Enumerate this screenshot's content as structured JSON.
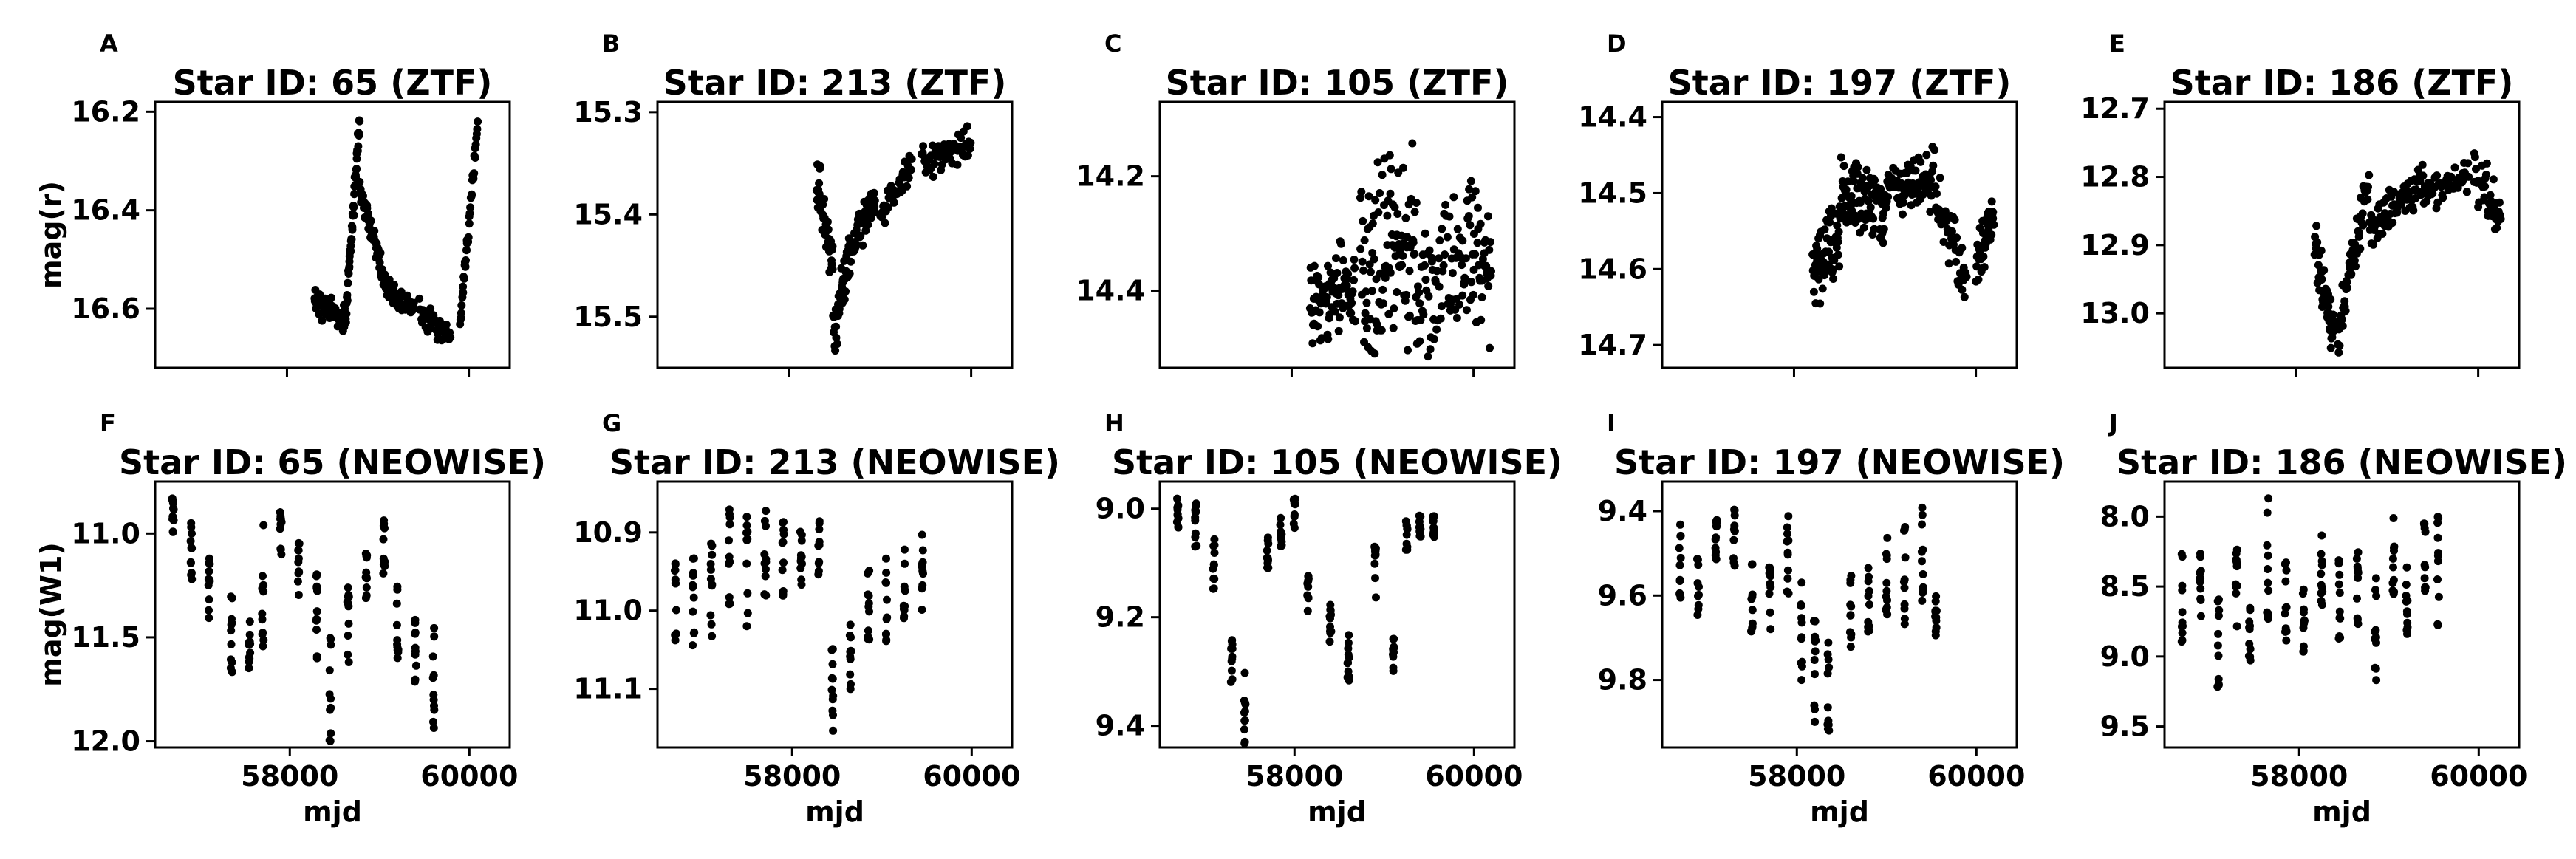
{
  "figure": {
    "marker_color": "#000000",
    "background": "#ffffff"
  },
  "chart_data": [
    {
      "type": "scatter",
      "panel_label": "A",
      "title": "Star ID: 65 (ZTF)",
      "xlabel": "",
      "ylabel": "mag(r)",
      "y_inverted": true,
      "grid": false,
      "xlim": [
        56550,
        60450
      ],
      "ylim": [
        16.72,
        16.18
      ],
      "xticks": [
        58000,
        60000
      ],
      "xticks_labeled": false,
      "yticks": [
        16.2,
        16.4,
        16.6
      ],
      "segments": [
        {
          "x0": 58300,
          "x1": 58640,
          "y0": 16.58,
          "y1": 16.62,
          "n": 60,
          "spread": 0.035
        },
        {
          "x0": 58640,
          "x1": 58800,
          "y0": 16.63,
          "y1": 16.22,
          "n": 55,
          "spread": 0.03
        },
        {
          "x0": 58800,
          "x1": 59100,
          "y0": 16.35,
          "y1": 16.56,
          "n": 60,
          "spread": 0.03
        },
        {
          "x0": 59100,
          "x1": 59400,
          "y0": 16.56,
          "y1": 16.6,
          "n": 40,
          "spread": 0.03
        },
        {
          "x0": 59450,
          "x1": 59800,
          "y0": 16.6,
          "y1": 16.66,
          "n": 45,
          "spread": 0.035
        },
        {
          "x0": 59900,
          "x1": 60100,
          "y0": 16.64,
          "y1": 16.22,
          "n": 40,
          "spread": 0.02
        }
      ]
    },
    {
      "type": "scatter",
      "panel_label": "B",
      "title": "Star ID: 213 (ZTF)",
      "xlabel": "",
      "ylabel": "",
      "y_inverted": true,
      "grid": false,
      "xlim": [
        56550,
        60450
      ],
      "ylim": [
        15.55,
        15.29
      ],
      "xticks": [
        58000,
        60000
      ],
      "xticks_labeled": false,
      "yticks": [
        15.3,
        15.4,
        15.5
      ],
      "segments": [
        {
          "x0": 58300,
          "x1": 58480,
          "y0": 15.36,
          "y1": 15.46,
          "n": 45,
          "spread": 0.03
        },
        {
          "x0": 58480,
          "x1": 58650,
          "y0": 15.52,
          "y1": 15.44,
          "n": 45,
          "spread": 0.03
        },
        {
          "x0": 58650,
          "x1": 58950,
          "y0": 15.44,
          "y1": 15.38,
          "n": 55,
          "spread": 0.025
        },
        {
          "x0": 59000,
          "x1": 59350,
          "y0": 15.4,
          "y1": 15.35,
          "n": 45,
          "spread": 0.02
        },
        {
          "x0": 59450,
          "x1": 60000,
          "y0": 15.35,
          "y1": 15.33,
          "n": 55,
          "spread": 0.02
        }
      ]
    },
    {
      "type": "scatter",
      "panel_label": "C",
      "title": "Star ID: 105 (ZTF)",
      "xlabel": "",
      "ylabel": "",
      "y_inverted": true,
      "grid": false,
      "xlim": [
        56550,
        60450
      ],
      "ylim": [
        14.535,
        14.07
      ],
      "xticks": [
        58000,
        60000
      ],
      "xticks_labeled": false,
      "yticks": [
        14.2,
        14.4
      ],
      "segments": [
        {
          "x0": 58200,
          "x1": 58700,
          "y0": 14.42,
          "y1": 14.4,
          "n": 90,
          "spread": 0.1
        },
        {
          "x0": 58750,
          "x1": 59400,
          "y0": 14.33,
          "y1": 14.33,
          "n": 110,
          "spread": 0.2
        },
        {
          "x0": 59400,
          "x1": 59950,
          "y0": 14.42,
          "y1": 14.33,
          "n": 70,
          "spread": 0.15
        },
        {
          "x0": 59950,
          "x1": 60200,
          "y0": 14.32,
          "y1": 14.38,
          "n": 40,
          "spread": 0.16
        }
      ]
    },
    {
      "type": "scatter",
      "panel_label": "D",
      "title": "Star ID: 197 (ZTF)",
      "xlabel": "",
      "ylabel": "",
      "y_inverted": true,
      "grid": false,
      "xlim": [
        56550,
        60450
      ],
      "ylim": [
        14.73,
        14.38
      ],
      "xticks": [
        58000,
        60000
      ],
      "xticks_labeled": false,
      "yticks": [
        14.4,
        14.5,
        14.6,
        14.7
      ],
      "segments": [
        {
          "x0": 58200,
          "x1": 58500,
          "y0": 14.6,
          "y1": 14.56,
          "n": 60,
          "spread": 0.06
        },
        {
          "x0": 58500,
          "x1": 59000,
          "y0": 14.5,
          "y1": 14.52,
          "n": 90,
          "spread": 0.055
        },
        {
          "x0": 59000,
          "x1": 59550,
          "y0": 14.5,
          "y1": 14.48,
          "n": 80,
          "spread": 0.05
        },
        {
          "x0": 59550,
          "x1": 59900,
          "y0": 14.5,
          "y1": 14.62,
          "n": 40,
          "spread": 0.05
        },
        {
          "x0": 60000,
          "x1": 60200,
          "y0": 14.6,
          "y1": 14.52,
          "n": 35,
          "spread": 0.04
        }
      ]
    },
    {
      "type": "scatter",
      "panel_label": "E",
      "title": "Star ID: 186 (ZTF)",
      "xlabel": "",
      "ylabel": "",
      "y_inverted": true,
      "grid": false,
      "xlim": [
        56550,
        60450
      ],
      "ylim": [
        13.08,
        12.69
      ],
      "xticks": [
        58000,
        60000
      ],
      "xticks_labeled": false,
      "yticks": [
        12.7,
        12.8,
        12.9,
        13.0
      ],
      "segments": [
        {
          "x0": 58200,
          "x1": 58420,
          "y0": 12.9,
          "y1": 13.03,
          "n": 50,
          "spread": 0.05
        },
        {
          "x0": 58450,
          "x1": 58800,
          "y0": 13.03,
          "y1": 12.8,
          "n": 60,
          "spread": 0.05
        },
        {
          "x0": 58800,
          "x1": 59400,
          "y0": 12.88,
          "y1": 12.8,
          "n": 70,
          "spread": 0.04
        },
        {
          "x0": 59400,
          "x1": 59900,
          "y0": 12.82,
          "y1": 12.8,
          "n": 50,
          "spread": 0.035
        },
        {
          "x0": 59950,
          "x1": 60250,
          "y0": 12.8,
          "y1": 12.86,
          "n": 40,
          "spread": 0.05
        }
      ]
    },
    {
      "type": "scatter",
      "panel_label": "F",
      "title": "Star ID: 65 (NEOWISE)",
      "xlabel": "mjd",
      "ylabel": "mag(W1)",
      "y_inverted": true,
      "grid": false,
      "xlim": [
        56500,
        60450
      ],
      "ylim": [
        12.03,
        10.75
      ],
      "xticks": [
        58000,
        60000
      ],
      "xticks_labeled": true,
      "yticks": [
        11.0,
        11.5,
        12.0
      ],
      "epochs": [
        {
          "x": 56700,
          "y": 10.92,
          "spread": 0.1
        },
        {
          "x": 56900,
          "y": 11.08,
          "spread": 0.14
        },
        {
          "x": 57100,
          "y": 11.25,
          "spread": 0.16
        },
        {
          "x": 57350,
          "y": 11.5,
          "spread": 0.2
        },
        {
          "x": 57550,
          "y": 11.55,
          "spread": 0.14
        },
        {
          "x": 57700,
          "y": 11.25,
          "spread": 0.3
        },
        {
          "x": 57900,
          "y": 11.0,
          "spread": 0.12
        },
        {
          "x": 58100,
          "y": 11.15,
          "spread": 0.15
        },
        {
          "x": 58300,
          "y": 11.4,
          "spread": 0.22
        },
        {
          "x": 58450,
          "y": 11.7,
          "spread": 0.35
        },
        {
          "x": 58650,
          "y": 11.45,
          "spread": 0.2
        },
        {
          "x": 58850,
          "y": 11.2,
          "spread": 0.12
        },
        {
          "x": 59050,
          "y": 11.05,
          "spread": 0.15
        },
        {
          "x": 59200,
          "y": 11.35,
          "spread": 0.25
        },
        {
          "x": 59400,
          "y": 11.55,
          "spread": 0.18
        },
        {
          "x": 59600,
          "y": 11.7,
          "spread": 0.25
        }
      ]
    },
    {
      "type": "scatter",
      "panel_label": "G",
      "title": "Star ID: 213 (NEOWISE)",
      "xlabel": "mjd",
      "ylabel": "",
      "y_inverted": true,
      "grid": false,
      "xlim": [
        56500,
        60450
      ],
      "ylim": [
        11.175,
        10.835
      ],
      "xticks": [
        58000,
        60000
      ],
      "xticks_labeled": true,
      "yticks": [
        10.9,
        11.0,
        11.1
      ],
      "epochs": [
        {
          "x": 56700,
          "y": 10.98,
          "spread": 0.06
        },
        {
          "x": 56900,
          "y": 10.99,
          "spread": 0.07
        },
        {
          "x": 57100,
          "y": 10.97,
          "spread": 0.07
        },
        {
          "x": 57300,
          "y": 10.94,
          "spread": 0.07
        },
        {
          "x": 57500,
          "y": 10.95,
          "spread": 0.07
        },
        {
          "x": 57700,
          "y": 10.94,
          "spread": 0.07
        },
        {
          "x": 57900,
          "y": 10.92,
          "spread": 0.07
        },
        {
          "x": 58100,
          "y": 10.92,
          "spread": 0.06
        },
        {
          "x": 58300,
          "y": 10.93,
          "spread": 0.05
        },
        {
          "x": 58450,
          "y": 11.1,
          "spread": 0.07
        },
        {
          "x": 58650,
          "y": 11.05,
          "spread": 0.06
        },
        {
          "x": 58850,
          "y": 11.0,
          "spread": 0.06
        },
        {
          "x": 59050,
          "y": 10.98,
          "spread": 0.06
        },
        {
          "x": 59250,
          "y": 10.96,
          "spread": 0.05
        },
        {
          "x": 59450,
          "y": 10.95,
          "spread": 0.05
        }
      ]
    },
    {
      "type": "scatter",
      "panel_label": "H",
      "title": "Star ID: 105 (NEOWISE)",
      "xlabel": "mjd",
      "ylabel": "",
      "y_inverted": true,
      "grid": false,
      "xlim": [
        56500,
        60450
      ],
      "ylim": [
        9.44,
        8.95
      ],
      "xticks": [
        58000,
        60000
      ],
      "xticks_labeled": true,
      "yticks": [
        9.0,
        9.2,
        9.4
      ],
      "epochs": [
        {
          "x": 56700,
          "y": 9.01,
          "spread": 0.03
        },
        {
          "x": 56900,
          "y": 9.03,
          "spread": 0.04
        },
        {
          "x": 57100,
          "y": 9.1,
          "spread": 0.05
        },
        {
          "x": 57300,
          "y": 9.28,
          "spread": 0.04
        },
        {
          "x": 57450,
          "y": 9.38,
          "spread": 0.08
        },
        {
          "x": 57700,
          "y": 9.08,
          "spread": 0.03
        },
        {
          "x": 57850,
          "y": 9.04,
          "spread": 0.03
        },
        {
          "x": 58000,
          "y": 9.01,
          "spread": 0.03
        },
        {
          "x": 58150,
          "y": 9.15,
          "spread": 0.04
        },
        {
          "x": 58400,
          "y": 9.22,
          "spread": 0.05
        },
        {
          "x": 58600,
          "y": 9.28,
          "spread": 0.05
        },
        {
          "x": 58900,
          "y": 9.12,
          "spread": 0.05
        },
        {
          "x": 59100,
          "y": 9.27,
          "spread": 0.04
        },
        {
          "x": 59250,
          "y": 9.05,
          "spread": 0.04
        },
        {
          "x": 59400,
          "y": 9.03,
          "spread": 0.03
        },
        {
          "x": 59550,
          "y": 9.03,
          "spread": 0.03
        }
      ]
    },
    {
      "type": "scatter",
      "panel_label": "I",
      "title": "Star ID: 197 (NEOWISE)",
      "xlabel": "mjd",
      "ylabel": "",
      "y_inverted": true,
      "grid": false,
      "xlim": [
        56500,
        60450
      ],
      "ylim": [
        9.96,
        9.33
      ],
      "xticks": [
        58000,
        60000
      ],
      "xticks_labeled": true,
      "yticks": [
        9.4,
        9.6,
        9.8
      ],
      "epochs": [
        {
          "x": 56700,
          "y": 9.53,
          "spread": 0.1
        },
        {
          "x": 56900,
          "y": 9.57,
          "spread": 0.1
        },
        {
          "x": 57100,
          "y": 9.5,
          "spread": 0.08
        },
        {
          "x": 57300,
          "y": 9.45,
          "spread": 0.08
        },
        {
          "x": 57500,
          "y": 9.6,
          "spread": 0.1
        },
        {
          "x": 57700,
          "y": 9.58,
          "spread": 0.1
        },
        {
          "x": 57900,
          "y": 9.5,
          "spread": 0.1
        },
        {
          "x": 58050,
          "y": 9.7,
          "spread": 0.15
        },
        {
          "x": 58200,
          "y": 9.78,
          "spread": 0.12
        },
        {
          "x": 58350,
          "y": 9.8,
          "spread": 0.12
        },
        {
          "x": 58600,
          "y": 9.65,
          "spread": 0.1
        },
        {
          "x": 58800,
          "y": 9.6,
          "spread": 0.1
        },
        {
          "x": 59000,
          "y": 9.55,
          "spread": 0.1
        },
        {
          "x": 59200,
          "y": 9.55,
          "spread": 0.12
        },
        {
          "x": 59400,
          "y": 9.5,
          "spread": 0.12
        },
        {
          "x": 59550,
          "y": 9.65,
          "spread": 0.06
        }
      ]
    },
    {
      "type": "scatter",
      "panel_label": "J",
      "title": "Star ID: 186 (NEOWISE)",
      "xlabel": "mjd",
      "ylabel": "",
      "y_inverted": true,
      "grid": false,
      "xlim": [
        56500,
        60450
      ],
      "ylim": [
        9.65,
        7.75
      ],
      "xticks": [
        58000,
        60000
      ],
      "xticks_labeled": true,
      "yticks": [
        8.0,
        8.5,
        9.0,
        9.5
      ],
      "epochs": [
        {
          "x": 56700,
          "y": 8.6,
          "spread": 0.35
        },
        {
          "x": 56900,
          "y": 8.5,
          "spread": 0.25
        },
        {
          "x": 57100,
          "y": 8.9,
          "spread": 0.35
        },
        {
          "x": 57300,
          "y": 8.5,
          "spread": 0.3
        },
        {
          "x": 57450,
          "y": 8.9,
          "spread": 0.25
        },
        {
          "x": 57650,
          "y": 8.3,
          "spread": 0.45
        },
        {
          "x": 57850,
          "y": 8.6,
          "spread": 0.3
        },
        {
          "x": 58050,
          "y": 8.7,
          "spread": 0.3
        },
        {
          "x": 58250,
          "y": 8.4,
          "spread": 0.35
        },
        {
          "x": 58450,
          "y": 8.6,
          "spread": 0.3
        },
        {
          "x": 58650,
          "y": 8.5,
          "spread": 0.3
        },
        {
          "x": 58850,
          "y": 8.8,
          "spread": 0.4
        },
        {
          "x": 59050,
          "y": 8.3,
          "spread": 0.35
        },
        {
          "x": 59200,
          "y": 8.6,
          "spread": 0.35
        },
        {
          "x": 59400,
          "y": 8.3,
          "spread": 0.3
        },
        {
          "x": 59550,
          "y": 8.4,
          "spread": 0.4
        }
      ]
    }
  ]
}
